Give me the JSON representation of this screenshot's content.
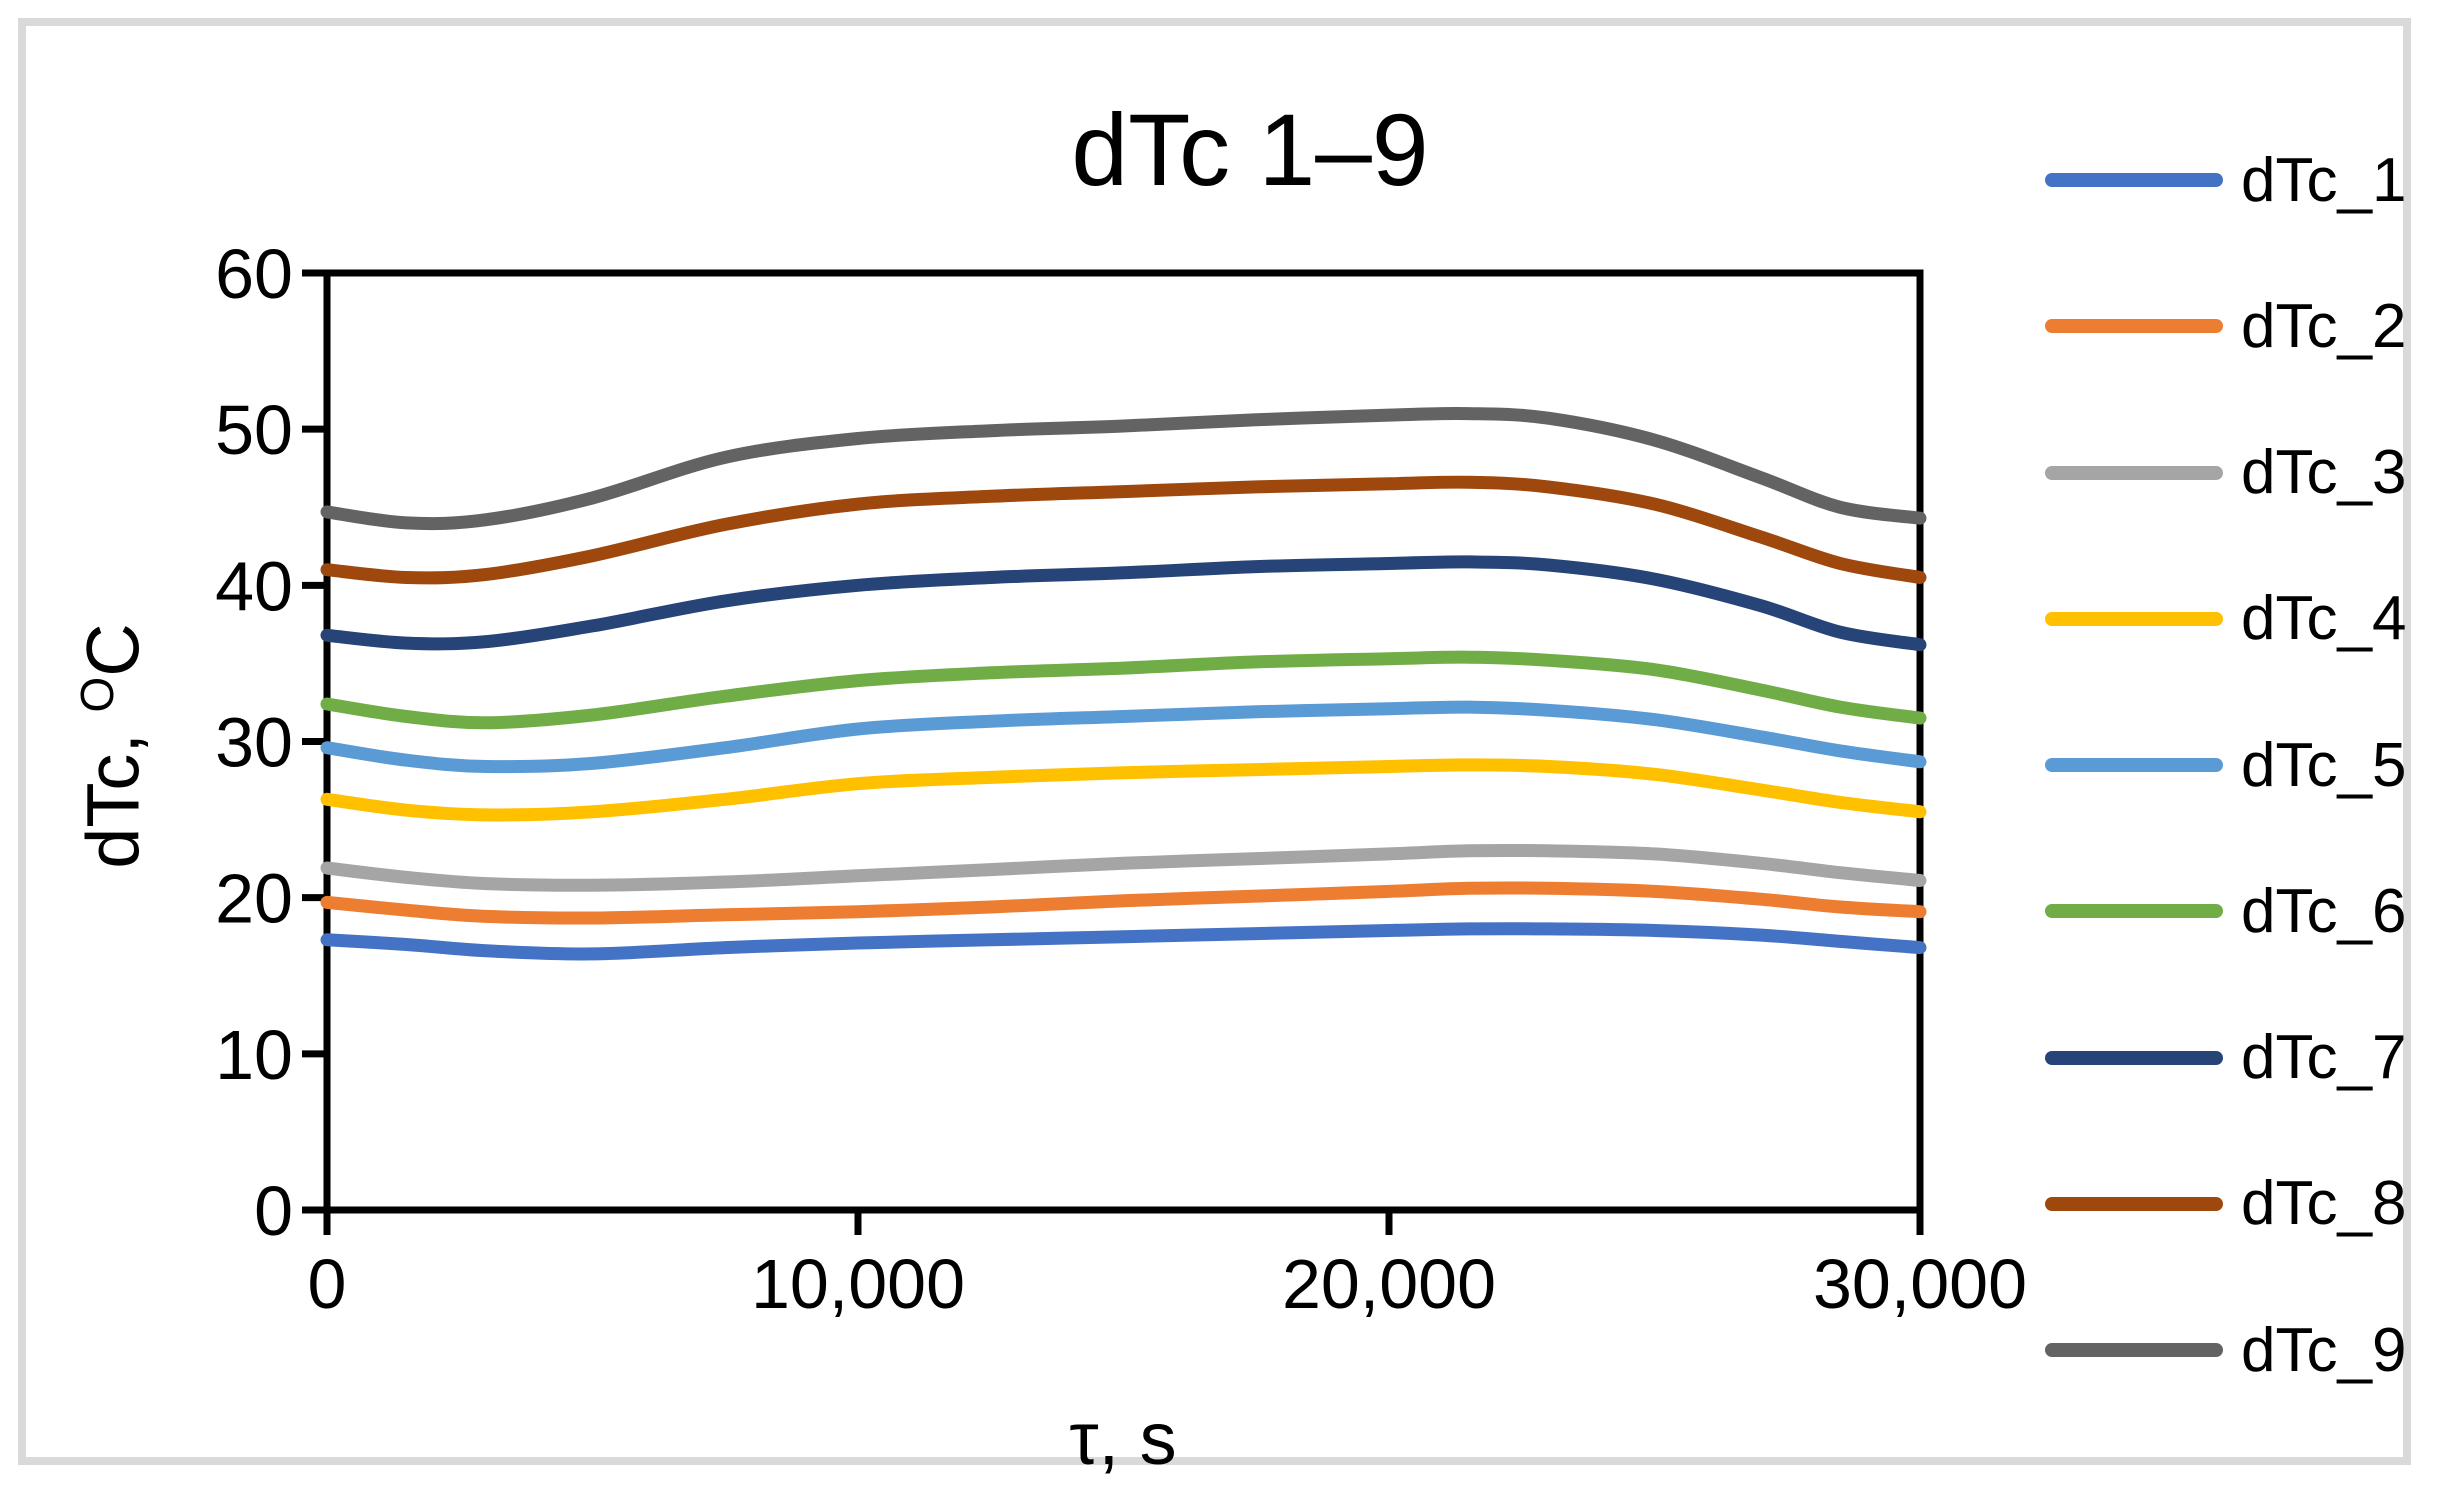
{
  "chart_data": {
    "type": "line",
    "title": "dTc 1–9",
    "xlabel": "τ, s",
    "ylabel_parts": [
      "dTc, ",
      "O",
      "C"
    ],
    "xlim": [
      0,
      30000
    ],
    "ylim": [
      0,
      60
    ],
    "grid": false,
    "legend_position": "right",
    "x_ticks": [
      {
        "label": "0",
        "value": 0
      },
      {
        "label": "10,000",
        "value": 10000
      },
      {
        "label": "20,000",
        "value": 20000
      },
      {
        "label": "30,000",
        "value": 30000
      }
    ],
    "y_ticks": [
      {
        "label": "0",
        "value": 0
      },
      {
        "label": "10",
        "value": 10
      },
      {
        "label": "20",
        "value": 20
      },
      {
        "label": "30",
        "value": 30
      },
      {
        "label": "40",
        "value": 40
      },
      {
        "label": "50",
        "value": 50
      },
      {
        "label": "60",
        "value": 60
      }
    ],
    "x": [
      0,
      1500,
      3000,
      5000,
      7500,
      10000,
      12500,
      15000,
      17500,
      20000,
      21500,
      23000,
      25000,
      27000,
      28500,
      30000
    ],
    "series": [
      {
        "name": "dTc_1",
        "color": "#4472C4",
        "values": [
          17.3,
          17.0,
          16.6,
          16.4,
          16.8,
          17.1,
          17.3,
          17.5,
          17.7,
          17.9,
          18.0,
          18.0,
          17.9,
          17.6,
          17.2,
          16.8
        ]
      },
      {
        "name": "dTc_2",
        "color": "#ED7D31",
        "values": [
          19.7,
          19.2,
          18.8,
          18.7,
          18.9,
          19.1,
          19.4,
          19.8,
          20.1,
          20.4,
          20.6,
          20.6,
          20.4,
          19.9,
          19.4,
          19.1
        ]
      },
      {
        "name": "dTc_3",
        "color": "#A5A5A5",
        "values": [
          21.9,
          21.3,
          20.9,
          20.8,
          21.0,
          21.4,
          21.8,
          22.2,
          22.5,
          22.8,
          23.0,
          23.0,
          22.8,
          22.2,
          21.6,
          21.1
        ]
      },
      {
        "name": "dTc_4",
        "color": "#FFC000",
        "values": [
          26.3,
          25.6,
          25.3,
          25.5,
          26.3,
          27.3,
          27.7,
          28.0,
          28.2,
          28.4,
          28.5,
          28.4,
          27.9,
          26.9,
          26.1,
          25.5
        ]
      },
      {
        "name": "dTc_5",
        "color": "#5B9BD5",
        "values": [
          29.6,
          28.8,
          28.4,
          28.6,
          29.6,
          30.8,
          31.3,
          31.6,
          31.9,
          32.1,
          32.2,
          32.0,
          31.4,
          30.3,
          29.4,
          28.7
        ]
      },
      {
        "name": "dTc_6",
        "color": "#70AD47",
        "values": [
          32.4,
          31.6,
          31.2,
          31.7,
          32.9,
          33.9,
          34.4,
          34.7,
          35.1,
          35.3,
          35.4,
          35.2,
          34.6,
          33.3,
          32.2,
          31.5
        ]
      },
      {
        "name": "dTc_7",
        "color": "#264478",
        "values": [
          36.8,
          36.3,
          36.4,
          37.4,
          39.0,
          40.0,
          40.5,
          40.8,
          41.2,
          41.4,
          41.5,
          41.3,
          40.4,
          38.7,
          37.0,
          36.2
        ]
      },
      {
        "name": "dTc_8",
        "color": "#9E480E",
        "values": [
          41.0,
          40.5,
          40.7,
          41.9,
          43.9,
          45.2,
          45.7,
          46.0,
          46.3,
          46.5,
          46.6,
          46.3,
          45.2,
          43.1,
          41.4,
          40.5
        ]
      },
      {
        "name": "dTc_9",
        "color": "#636363",
        "values": [
          44.7,
          44.0,
          44.2,
          45.6,
          48.2,
          49.4,
          49.9,
          50.2,
          50.6,
          50.9,
          51.0,
          50.7,
          49.3,
          46.9,
          45.0,
          44.3
        ]
      }
    ]
  }
}
